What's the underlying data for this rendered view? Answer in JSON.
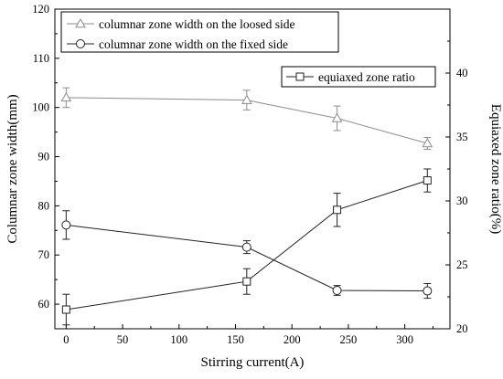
{
  "chart_data": {
    "type": "line",
    "xlabel": "Stirring current(A)",
    "ylabel_left": "Columnar zone width(mm)",
    "ylabel_right": "Equiaxed zone ratio(%)",
    "xlim": [
      -10,
      340
    ],
    "ylim_left": [
      55,
      120
    ],
    "ylim_right": [
      20,
      45
    ],
    "x_ticks": [
      0,
      50,
      100,
      150,
      200,
      250,
      300
    ],
    "y_left_ticks": [
      60,
      70,
      80,
      90,
      100,
      110,
      120
    ],
    "y_right_ticks": [
      20,
      25,
      30,
      35,
      40
    ],
    "grid": false,
    "legend_placement": "top-left",
    "series": [
      {
        "name": "columnar zone width on the loosed side",
        "axis": "left",
        "marker": "triangle",
        "color": "#8c8c8c",
        "x": [
          0,
          160,
          240,
          320
        ],
        "y": [
          102,
          101.5,
          97.8,
          92.7
        ],
        "err": [
          2.0,
          2.0,
          2.5,
          1.2
        ]
      },
      {
        "name": "columnar zone width on the fixed side",
        "axis": "left",
        "marker": "circle",
        "color": "#222222",
        "x": [
          0,
          160,
          240,
          320
        ],
        "y": [
          76.1,
          71.6,
          62.8,
          62.7
        ],
        "err": [
          2.9,
          1.3,
          1.0,
          1.5
        ]
      },
      {
        "name": "equiaxed zone ratio",
        "axis": "right",
        "marker": "square",
        "color": "#222222",
        "x": [
          0,
          160,
          240,
          320
        ],
        "y": [
          21.5,
          23.7,
          29.3,
          31.6
        ],
        "err": [
          1.2,
          1.0,
          1.3,
          0.9
        ]
      }
    ]
  }
}
